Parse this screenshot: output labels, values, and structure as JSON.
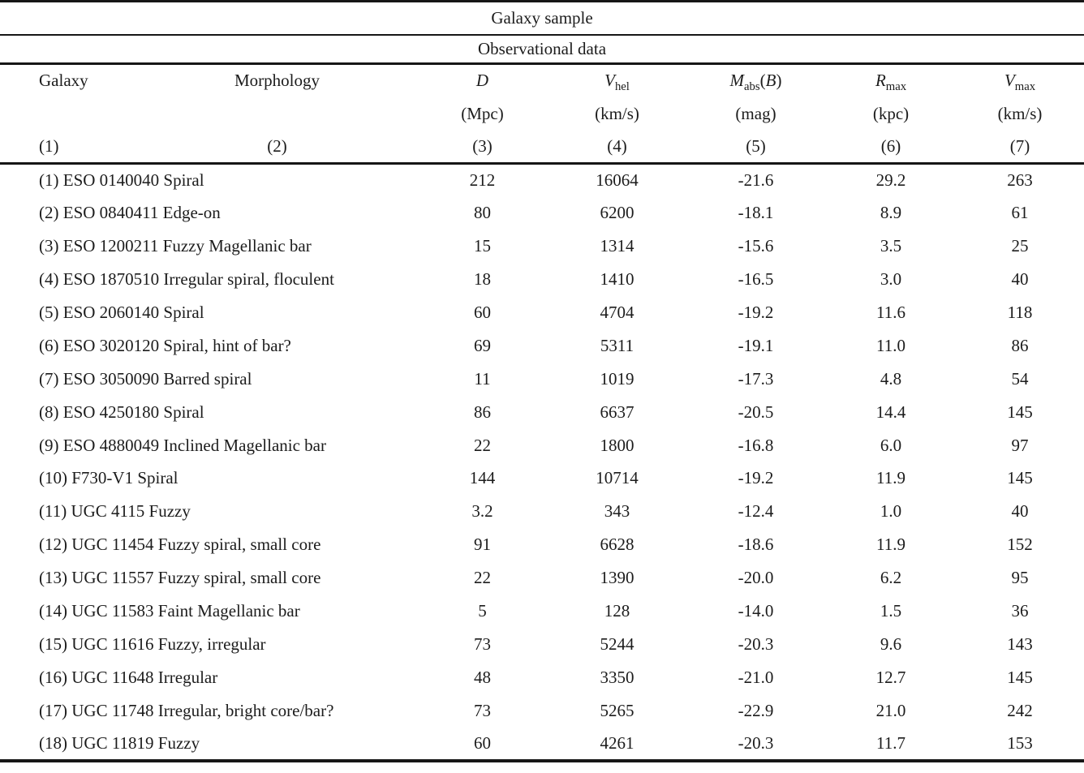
{
  "titles": {
    "main": "Galaxy sample",
    "sub": "Observational data"
  },
  "table": {
    "columns": [
      {
        "name": "Galaxy",
        "unit": "",
        "index": "(1)"
      },
      {
        "name": "Morphology",
        "unit": "",
        "index": "(2)"
      },
      {
        "symbol": "D",
        "sub": "",
        "unit": "(Mpc)",
        "index": "(3)"
      },
      {
        "symbol": "V",
        "sub": "hel",
        "unit": "(km/s)",
        "index": "(4)"
      },
      {
        "symbol": "M",
        "sub": "abs",
        "arg_open": "(",
        "arg": "B",
        "arg_close": ")",
        "unit": "(mag)",
        "index": "(5)"
      },
      {
        "symbol": "R",
        "sub": "max",
        "unit": "(kpc)",
        "index": "(6)"
      },
      {
        "symbol": "V",
        "sub": "max",
        "unit": "(km/s)",
        "index": "(7)"
      }
    ],
    "rows": [
      {
        "galaxy": "(1) ESO 0140040",
        "morphology": "Spiral",
        "d_mpc": "212",
        "v_hel": "16064",
        "m_abs_b": "-21.6",
        "r_max": "29.2",
        "v_max": "263"
      },
      {
        "galaxy": "(2) ESO 0840411",
        "morphology": "Edge-on",
        "d_mpc": "80",
        "v_hel": "6200",
        "m_abs_b": "-18.1",
        "r_max": "8.9",
        "v_max": "61"
      },
      {
        "galaxy": "(3) ESO 1200211",
        "morphology": "Fuzzy Magellanic bar",
        "d_mpc": "15",
        "v_hel": "1314",
        "m_abs_b": "-15.6",
        "r_max": "3.5",
        "v_max": "25"
      },
      {
        "galaxy": "(4) ESO 1870510",
        "morphology": "Irregular spiral, floculent",
        "d_mpc": "18",
        "v_hel": "1410",
        "m_abs_b": "-16.5",
        "r_max": "3.0",
        "v_max": "40"
      },
      {
        "galaxy": "(5) ESO 2060140",
        "morphology": "Spiral",
        "d_mpc": "60",
        "v_hel": "4704",
        "m_abs_b": "-19.2",
        "r_max": "11.6",
        "v_max": "118"
      },
      {
        "galaxy": "(6) ESO 3020120",
        "morphology": "Spiral, hint of bar?",
        "d_mpc": "69",
        "v_hel": "5311",
        "m_abs_b": "-19.1",
        "r_max": "11.0",
        "v_max": "86"
      },
      {
        "galaxy": "(7) ESO 3050090",
        "morphology": "Barred spiral",
        "d_mpc": "11",
        "v_hel": "1019",
        "m_abs_b": "-17.3",
        "r_max": "4.8",
        "v_max": "54"
      },
      {
        "galaxy": "(8) ESO 4250180",
        "morphology": "Spiral",
        "d_mpc": "86",
        "v_hel": "6637",
        "m_abs_b": "-20.5",
        "r_max": "14.4",
        "v_max": "145"
      },
      {
        "galaxy": "(9) ESO 4880049",
        "morphology": "Inclined Magellanic bar",
        "d_mpc": "22",
        "v_hel": "1800",
        "m_abs_b": "-16.8",
        "r_max": "6.0",
        "v_max": "97"
      },
      {
        "galaxy": "(10) F730-V1",
        "morphology": "Spiral",
        "d_mpc": "144",
        "v_hel": "10714",
        "m_abs_b": "-19.2",
        "r_max": "11.9",
        "v_max": "145"
      },
      {
        "galaxy": "(11) UGC 4115",
        "morphology": "Fuzzy",
        "d_mpc": "3.2",
        "v_hel": "343",
        "m_abs_b": "-12.4",
        "r_max": "1.0",
        "v_max": "40"
      },
      {
        "galaxy": "(12) UGC 11454",
        "morphology": "Fuzzy spiral, small core",
        "d_mpc": "91",
        "v_hel": "6628",
        "m_abs_b": "-18.6",
        "r_max": "11.9",
        "v_max": "152"
      },
      {
        "galaxy": "(13) UGC 11557",
        "morphology": "Fuzzy spiral, small core",
        "d_mpc": "22",
        "v_hel": "1390",
        "m_abs_b": "-20.0",
        "r_max": "6.2",
        "v_max": "95"
      },
      {
        "galaxy": "(14) UGC 11583",
        "morphology": "Faint Magellanic bar",
        "d_mpc": "5",
        "v_hel": "128",
        "m_abs_b": "-14.0",
        "r_max": "1.5",
        "v_max": "36"
      },
      {
        "galaxy": "(15) UGC 11616",
        "morphology": "Fuzzy, irregular",
        "d_mpc": "73",
        "v_hel": "5244",
        "m_abs_b": "-20.3",
        "r_max": "9.6",
        "v_max": "143"
      },
      {
        "galaxy": "(16) UGC 11648",
        "morphology": "Irregular",
        "d_mpc": "48",
        "v_hel": "3350",
        "m_abs_b": "-21.0",
        "r_max": "12.7",
        "v_max": "145"
      },
      {
        "galaxy": "(17) UGC 11748",
        "morphology": "Irregular, bright core/bar?",
        "d_mpc": "73",
        "v_hel": "5265",
        "m_abs_b": "-22.9",
        "r_max": "21.0",
        "v_max": "242"
      },
      {
        "galaxy": "(18) UGC 11819",
        "morphology": "Fuzzy",
        "d_mpc": "60",
        "v_hel": "4261",
        "m_abs_b": "-20.3",
        "r_max": "11.7",
        "v_max": "153"
      }
    ]
  }
}
